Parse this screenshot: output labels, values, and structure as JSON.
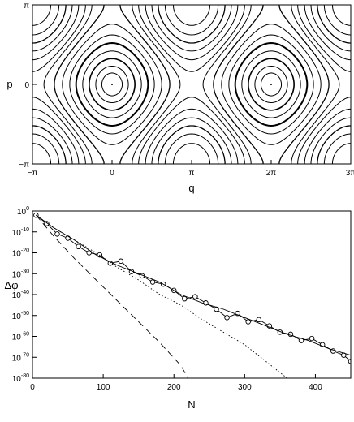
{
  "chart_data": [
    {
      "type": "line",
      "subtype": "phase-portrait",
      "xlabel": "q",
      "ylabel": "p",
      "xlim": [
        -3.1416,
        9.4248
      ],
      "ylim": [
        -3.1416,
        3.1416
      ],
      "x_ticks": [
        "−π",
        "0",
        "π",
        "2π",
        "3π"
      ],
      "y_ticks": [
        "π",
        "0",
        "−π"
      ],
      "islands_centers_q": [
        "0",
        "2π"
      ],
      "grid": false
    },
    {
      "type": "line",
      "xlabel": "N",
      "ylabel": "Δφ",
      "xlim": [
        0,
        450
      ],
      "ylog": true,
      "ylim_exponent": [
        -80,
        0
      ],
      "x_ticks": [
        "0",
        "100",
        "200",
        "300",
        "400"
      ],
      "y_ticks": [
        {
          "base": "10",
          "exp": "0"
        },
        {
          "base": "10",
          "exp": "-10"
        },
        {
          "base": "10",
          "exp": "-20"
        },
        {
          "base": "10",
          "exp": "-30"
        },
        {
          "base": "10",
          "exp": "-40"
        },
        {
          "base": "10",
          "exp": "-50"
        },
        {
          "base": "10",
          "exp": "-60"
        },
        {
          "base": "10",
          "exp": "-70"
        },
        {
          "base": "10",
          "exp": "-80"
        }
      ],
      "grid": false,
      "series": [
        {
          "style": "circles-line",
          "x": [
            5,
            20,
            35,
            50,
            65,
            80,
            95,
            110,
            125,
            140,
            155,
            170,
            185,
            200,
            215,
            230,
            245,
            260,
            275,
            290,
            305,
            320,
            335,
            350,
            365,
            380,
            395,
            410,
            425,
            440,
            450
          ],
          "y_exp": [
            -2,
            -6,
            -11,
            -13,
            -17,
            -20,
            -21,
            -25,
            -24,
            -29,
            -31,
            -34,
            -35,
            -38,
            -42,
            -41,
            -44,
            -47,
            -51,
            -49,
            -53,
            -52,
            -55,
            -58,
            -59,
            -62,
            -61,
            -64,
            -67,
            -69,
            -72
          ]
        },
        {
          "style": "solid",
          "x": [
            5,
            30,
            60,
            90,
            120,
            150,
            180,
            210,
            240,
            270,
            300,
            330,
            360,
            390,
            420,
            450
          ],
          "y_exp": [
            -2,
            -8,
            -14,
            -21,
            -26,
            -30,
            -34,
            -40,
            -44,
            -47,
            -51,
            -55,
            -59,
            -62,
            -66,
            -69
          ]
        },
        {
          "style": "dotted",
          "x": [
            5,
            30,
            60,
            90,
            120,
            150,
            180,
            210,
            240,
            270,
            300,
            330,
            360
          ],
          "y_exp": [
            -2,
            -8,
            -14,
            -20,
            -27,
            -33,
            -40,
            -45,
            -52,
            -58,
            -64,
            -72,
            -80
          ]
        },
        {
          "style": "dashed",
          "x": [
            5,
            30,
            60,
            90,
            120,
            150,
            180,
            210,
            220
          ],
          "y_exp": [
            -2,
            -12,
            -23,
            -33,
            -43,
            -53,
            -63,
            -74,
            -80
          ]
        }
      ]
    }
  ]
}
